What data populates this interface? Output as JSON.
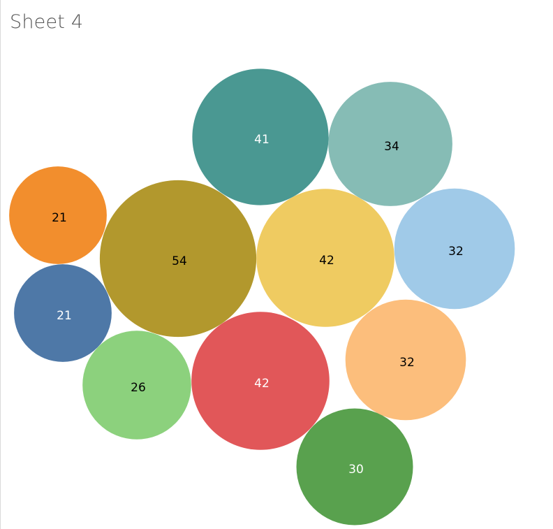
{
  "sheet": {
    "title": "Sheet 4"
  },
  "chart_data": {
    "type": "packed-bubble",
    "values": [
      41,
      34,
      21,
      54,
      42,
      32,
      21,
      26,
      42,
      32,
      30
    ],
    "label_colors": [
      "#ffffff",
      "#000000",
      "#000000",
      "#000000",
      "#000000",
      "#000000",
      "#ffffff",
      "#000000",
      "#ffffff",
      "#000000",
      "#ffffff"
    ],
    "colors": [
      "#4a9892",
      "#86bcb5",
      "#f28e2d",
      "#b2982d",
      "#efcb61",
      "#a0cae8",
      "#4e78a7",
      "#8cd17d",
      "#e15759",
      "#fcbe7c",
      "#59a14e"
    ]
  }
}
